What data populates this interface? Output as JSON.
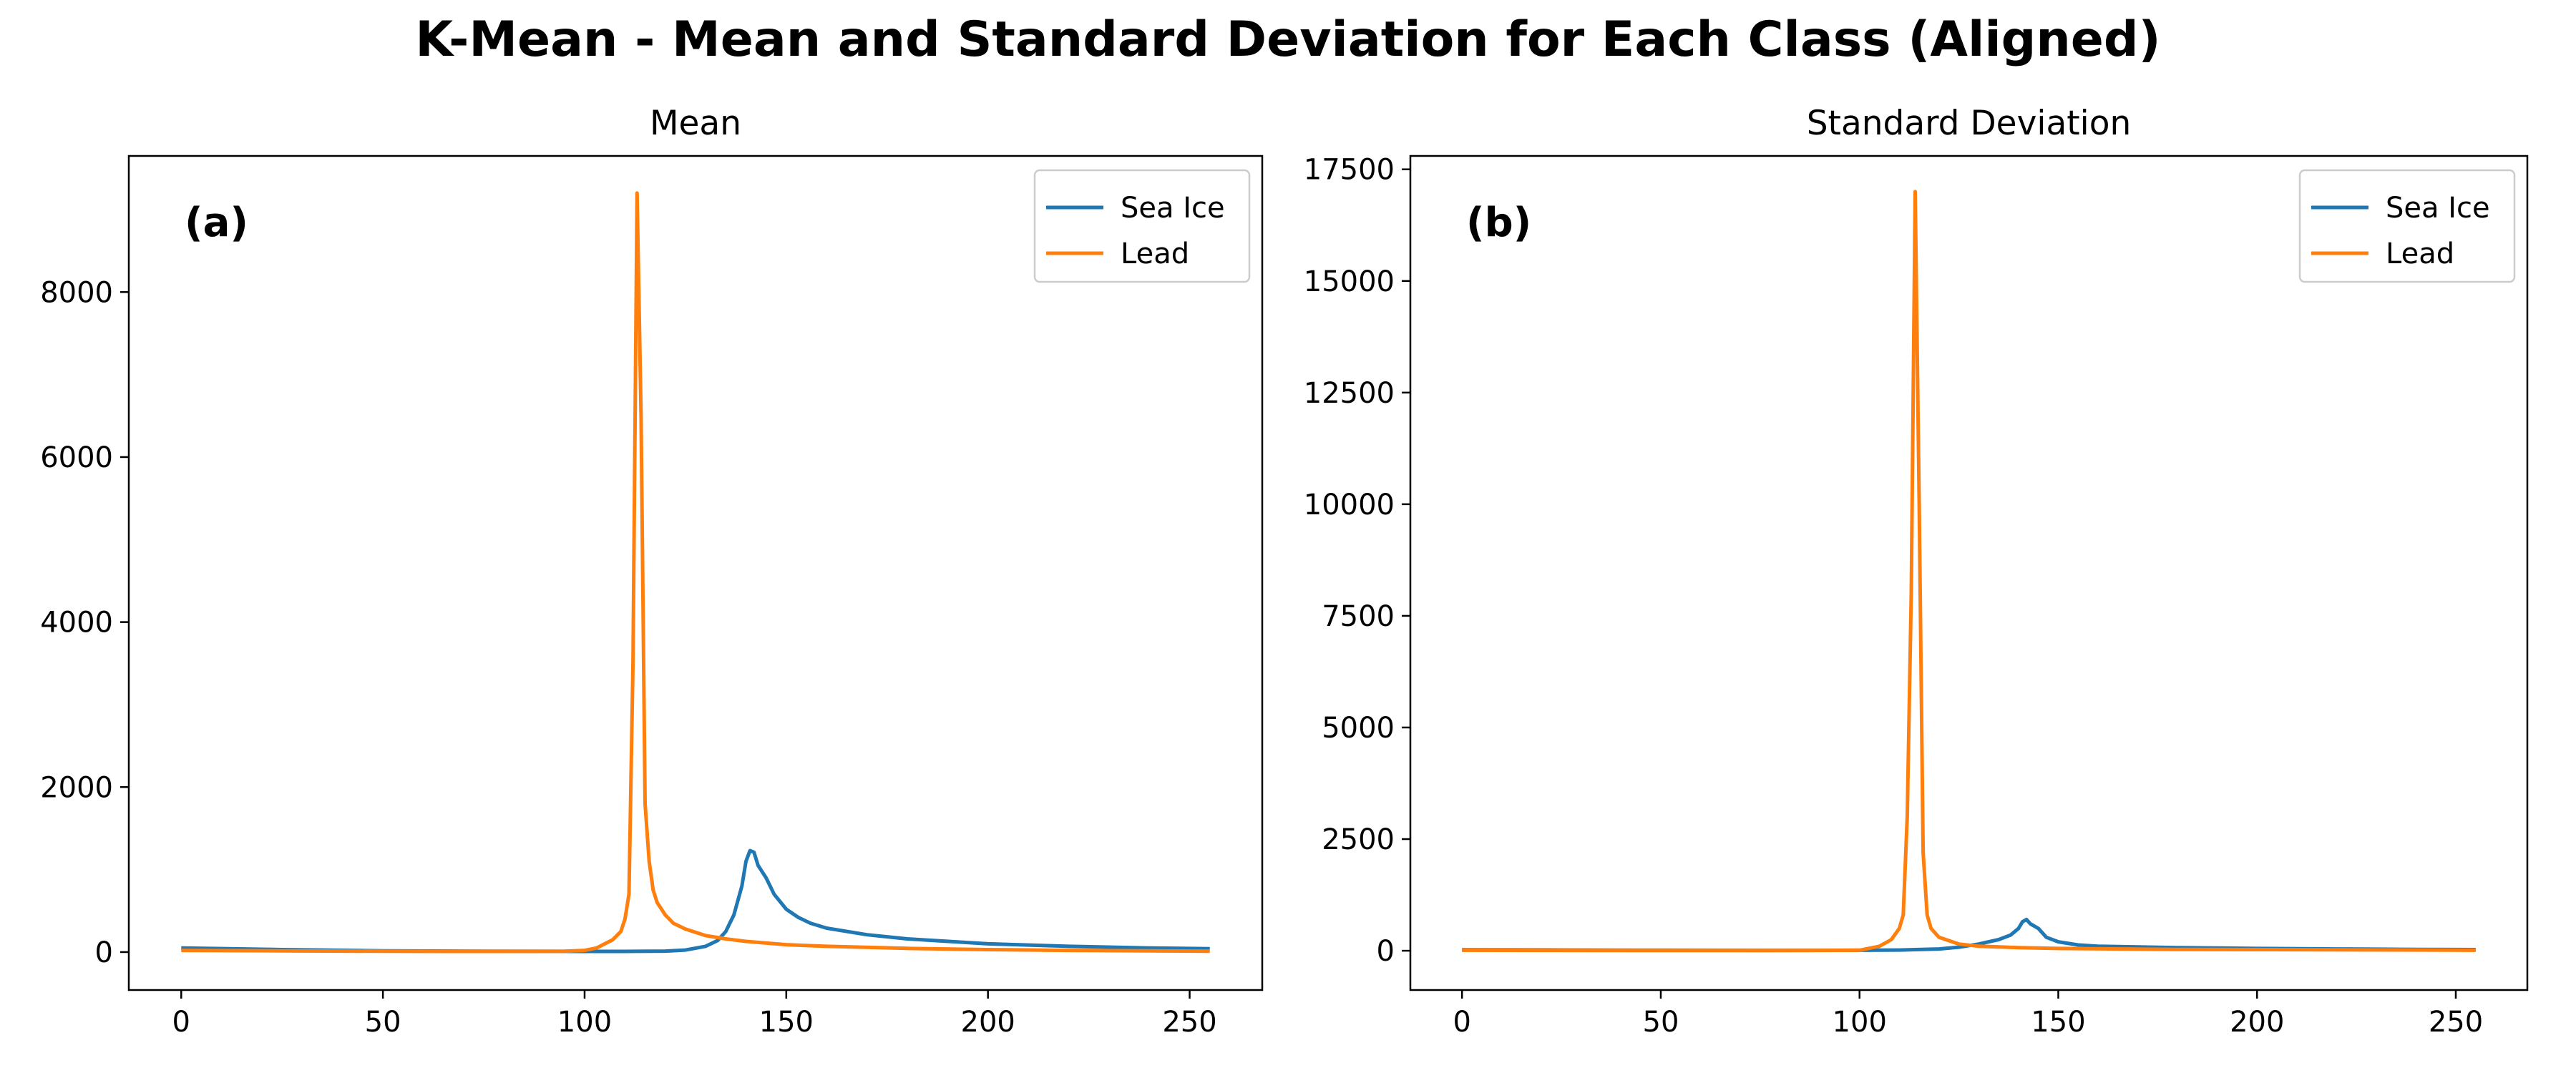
{
  "figure": {
    "title": "K-Mean - Mean and Standard Deviation for Each Class (Aligned)"
  },
  "colors": {
    "sea_ice": "#1f77b4",
    "lead": "#ff7f0e"
  },
  "chart_data": [
    {
      "type": "line",
      "title": "Mean",
      "panel_label": "(a)",
      "xlabel": "",
      "ylabel": "",
      "xlim": [
        -13,
        268
      ],
      "ylim": [
        -460,
        9650
      ],
      "xticks": [
        0,
        50,
        100,
        150,
        200,
        250
      ],
      "yticks": [
        0,
        2000,
        4000,
        6000,
        8000
      ],
      "grid": false,
      "legend_position": "upper right",
      "series": [
        {
          "name": "Sea Ice",
          "color": "#1f77b4",
          "x": [
            0,
            25,
            50,
            75,
            100,
            110,
            120,
            125,
            130,
            133,
            135,
            137,
            139,
            140,
            141,
            142,
            143,
            145,
            147,
            150,
            153,
            156,
            160,
            170,
            180,
            200,
            220,
            240,
            255
          ],
          "y": [
            50,
            30,
            15,
            10,
            8,
            8,
            12,
            25,
            70,
            140,
            250,
            450,
            800,
            1100,
            1230,
            1210,
            1050,
            900,
            700,
            520,
            420,
            350,
            290,
            210,
            160,
            100,
            70,
            50,
            40
          ]
        },
        {
          "name": "Lead",
          "color": "#ff7f0e",
          "x": [
            0,
            25,
            50,
            75,
            95,
            100,
            103,
            105,
            107,
            109,
            110,
            111,
            112,
            113,
            114,
            115,
            116,
            117,
            118,
            120,
            122,
            125,
            130,
            135,
            140,
            150,
            160,
            180,
            200,
            220,
            240,
            255
          ],
          "y": [
            20,
            15,
            10,
            8,
            10,
            20,
            50,
            100,
            150,
            250,
            400,
            700,
            3500,
            9200,
            6500,
            1800,
            1100,
            750,
            600,
            450,
            350,
            280,
            200,
            160,
            130,
            90,
            70,
            45,
            30,
            20,
            15,
            10
          ]
        }
      ]
    },
    {
      "type": "line",
      "title": "Standard Deviation",
      "panel_label": "(b)",
      "xlabel": "",
      "ylabel": "",
      "xlim": [
        -13,
        268
      ],
      "ylim": [
        -880,
        17800
      ],
      "xticks": [
        0,
        50,
        100,
        150,
        200,
        250
      ],
      "yticks": [
        0,
        2500,
        5000,
        7500,
        10000,
        12500,
        15000,
        17500
      ],
      "grid": false,
      "legend_position": "upper right",
      "series": [
        {
          "name": "Sea Ice",
          "color": "#1f77b4",
          "x": [
            0,
            25,
            50,
            75,
            100,
            110,
            120,
            125,
            130,
            135,
            138,
            140,
            141,
            142,
            143,
            145,
            147,
            150,
            155,
            160,
            180,
            200,
            220,
            240,
            255
          ],
          "y": [
            20,
            15,
            10,
            8,
            10,
            15,
            40,
            80,
            150,
            250,
            350,
            500,
            650,
            700,
            600,
            500,
            300,
            200,
            130,
            100,
            70,
            50,
            40,
            30,
            25
          ]
        },
        {
          "name": "Lead",
          "color": "#ff7f0e",
          "x": [
            0,
            25,
            50,
            75,
            100,
            105,
            108,
            110,
            111,
            112,
            113,
            114,
            115,
            116,
            117,
            118,
            120,
            125,
            130,
            140,
            150,
            180,
            220,
            255
          ],
          "y": [
            10,
            8,
            5,
            5,
            10,
            100,
            250,
            500,
            800,
            3000,
            8000,
            17000,
            10000,
            2200,
            800,
            500,
            300,
            150,
            100,
            70,
            50,
            30,
            20,
            10
          ]
        }
      ]
    }
  ]
}
